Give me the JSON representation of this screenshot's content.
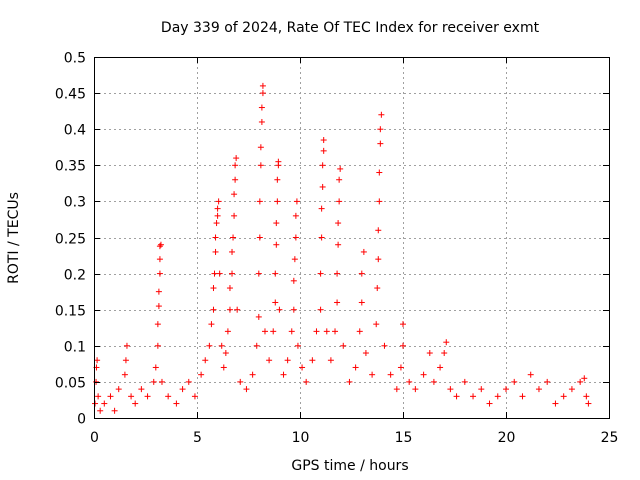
{
  "chart_data": {
    "type": "scatter",
    "title": "Day 339 of 2024, Rate Of TEC Index for receiver exmt",
    "xlabel": "GPS time / hours",
    "ylabel": "ROTI / TECUs",
    "xlim": [
      0,
      25
    ],
    "ylim": [
      0,
      0.5
    ],
    "xticks": [
      0,
      5,
      10,
      15,
      20,
      25
    ],
    "xtick_labels": [
      "0",
      "5",
      "10",
      "15",
      "20",
      "25"
    ],
    "yticks": [
      0,
      0.05,
      0.1,
      0.15,
      0.2,
      0.25,
      0.3,
      0.35,
      0.4,
      0.45,
      0.5
    ],
    "ytick_labels": [
      "0",
      "0.05",
      "0.1",
      "0.15",
      "0.2",
      "0.25",
      "0.3",
      "0.35",
      "0.4",
      "0.45",
      "0.5"
    ],
    "grid": true,
    "marker": "+",
    "color": "#ff0000",
    "series": [
      {
        "name": "ROTI",
        "points": [
          [
            0.05,
            0.02
          ],
          [
            0.1,
            0.05
          ],
          [
            0.12,
            0.07
          ],
          [
            0.15,
            0.08
          ],
          [
            0.2,
            0.03
          ],
          [
            0.3,
            0.01
          ],
          [
            0.5,
            0.02
          ],
          [
            0.8,
            0.03
          ],
          [
            1.0,
            0.01
          ],
          [
            1.2,
            0.04
          ],
          [
            1.5,
            0.06
          ],
          [
            1.55,
            0.08
          ],
          [
            1.6,
            0.1
          ],
          [
            1.8,
            0.03
          ],
          [
            2.0,
            0.02
          ],
          [
            2.3,
            0.04
          ],
          [
            2.6,
            0.03
          ],
          [
            2.9,
            0.05
          ],
          [
            3.0,
            0.07
          ],
          [
            3.1,
            0.1
          ],
          [
            3.1,
            0.13
          ],
          [
            3.15,
            0.155
          ],
          [
            3.15,
            0.175
          ],
          [
            3.2,
            0.2
          ],
          [
            3.2,
            0.22
          ],
          [
            3.2,
            0.238
          ],
          [
            3.25,
            0.24
          ],
          [
            3.3,
            0.05
          ],
          [
            3.6,
            0.03
          ],
          [
            4.0,
            0.02
          ],
          [
            4.3,
            0.04
          ],
          [
            4.6,
            0.05
          ],
          [
            4.9,
            0.03
          ],
          [
            5.2,
            0.06
          ],
          [
            5.4,
            0.08
          ],
          [
            5.6,
            0.1
          ],
          [
            5.7,
            0.13
          ],
          [
            5.8,
            0.15
          ],
          [
            5.8,
            0.18
          ],
          [
            5.85,
            0.2
          ],
          [
            5.9,
            0.23
          ],
          [
            5.9,
            0.25
          ],
          [
            5.95,
            0.27
          ],
          [
            6.0,
            0.28
          ],
          [
            6.0,
            0.29
          ],
          [
            6.05,
            0.3
          ],
          [
            6.1,
            0.2
          ],
          [
            6.2,
            0.1
          ],
          [
            6.3,
            0.07
          ],
          [
            6.4,
            0.09
          ],
          [
            6.5,
            0.12
          ],
          [
            6.6,
            0.15
          ],
          [
            6.6,
            0.18
          ],
          [
            6.7,
            0.2
          ],
          [
            6.7,
            0.23
          ],
          [
            6.75,
            0.25
          ],
          [
            6.8,
            0.28
          ],
          [
            6.8,
            0.31
          ],
          [
            6.85,
            0.33
          ],
          [
            6.85,
            0.35
          ],
          [
            6.9,
            0.36
          ],
          [
            6.95,
            0.15
          ],
          [
            7.1,
            0.05
          ],
          [
            7.4,
            0.04
          ],
          [
            7.7,
            0.06
          ],
          [
            7.9,
            0.1
          ],
          [
            8.0,
            0.14
          ],
          [
            8.0,
            0.2
          ],
          [
            8.05,
            0.25
          ],
          [
            8.05,
            0.3
          ],
          [
            8.1,
            0.35
          ],
          [
            8.1,
            0.375
          ],
          [
            8.15,
            0.41
          ],
          [
            8.15,
            0.43
          ],
          [
            8.2,
            0.45
          ],
          [
            8.2,
            0.46
          ],
          [
            8.3,
            0.12
          ],
          [
            8.5,
            0.08
          ],
          [
            8.7,
            0.12
          ],
          [
            8.8,
            0.16
          ],
          [
            8.8,
            0.2
          ],
          [
            8.85,
            0.24
          ],
          [
            8.85,
            0.27
          ],
          [
            8.9,
            0.3
          ],
          [
            8.9,
            0.33
          ],
          [
            8.95,
            0.35
          ],
          [
            8.95,
            0.355
          ],
          [
            9.0,
            0.15
          ],
          [
            9.2,
            0.06
          ],
          [
            9.4,
            0.08
          ],
          [
            9.6,
            0.12
          ],
          [
            9.7,
            0.15
          ],
          [
            9.7,
            0.19
          ],
          [
            9.75,
            0.22
          ],
          [
            9.8,
            0.25
          ],
          [
            9.8,
            0.28
          ],
          [
            9.85,
            0.3
          ],
          [
            9.9,
            0.1
          ],
          [
            10.1,
            0.07
          ],
          [
            10.3,
            0.05
          ],
          [
            10.6,
            0.08
          ],
          [
            10.8,
            0.12
          ],
          [
            11.0,
            0.15
          ],
          [
            11.0,
            0.2
          ],
          [
            11.05,
            0.25
          ],
          [
            11.05,
            0.29
          ],
          [
            11.1,
            0.32
          ],
          [
            11.1,
            0.35
          ],
          [
            11.15,
            0.37
          ],
          [
            11.15,
            0.385
          ],
          [
            11.3,
            0.12
          ],
          [
            11.5,
            0.08
          ],
          [
            11.7,
            0.12
          ],
          [
            11.8,
            0.16
          ],
          [
            11.8,
            0.2
          ],
          [
            11.85,
            0.24
          ],
          [
            11.85,
            0.27
          ],
          [
            11.9,
            0.3
          ],
          [
            11.9,
            0.33
          ],
          [
            11.95,
            0.345
          ],
          [
            12.1,
            0.1
          ],
          [
            12.4,
            0.05
          ],
          [
            12.7,
            0.07
          ],
          [
            12.9,
            0.12
          ],
          [
            13.0,
            0.16
          ],
          [
            13.0,
            0.2
          ],
          [
            13.1,
            0.23
          ],
          [
            13.2,
            0.09
          ],
          [
            13.5,
            0.06
          ],
          [
            13.7,
            0.13
          ],
          [
            13.75,
            0.18
          ],
          [
            13.8,
            0.22
          ],
          [
            13.8,
            0.26
          ],
          [
            13.85,
            0.3
          ],
          [
            13.85,
            0.34
          ],
          [
            13.9,
            0.38
          ],
          [
            13.9,
            0.4
          ],
          [
            13.95,
            0.42
          ],
          [
            14.1,
            0.1
          ],
          [
            14.4,
            0.06
          ],
          [
            14.7,
            0.04
          ],
          [
            14.9,
            0.07
          ],
          [
            15.0,
            0.1
          ],
          [
            15.0,
            0.13
          ],
          [
            15.3,
            0.05
          ],
          [
            15.6,
            0.04
          ],
          [
            16.0,
            0.06
          ],
          [
            16.3,
            0.09
          ],
          [
            16.5,
            0.05
          ],
          [
            16.8,
            0.07
          ],
          [
            17.0,
            0.09
          ],
          [
            17.1,
            0.105
          ],
          [
            17.3,
            0.04
          ],
          [
            17.6,
            0.03
          ],
          [
            18.0,
            0.05
          ],
          [
            18.4,
            0.03
          ],
          [
            18.8,
            0.04
          ],
          [
            19.2,
            0.02
          ],
          [
            19.6,
            0.03
          ],
          [
            20.0,
            0.04
          ],
          [
            20.4,
            0.05
          ],
          [
            20.8,
            0.03
          ],
          [
            21.2,
            0.06
          ],
          [
            21.6,
            0.04
          ],
          [
            22.0,
            0.05
          ],
          [
            22.4,
            0.02
          ],
          [
            22.8,
            0.03
          ],
          [
            23.2,
            0.04
          ],
          [
            23.6,
            0.05
          ],
          [
            23.8,
            0.055
          ],
          [
            23.9,
            0.03
          ],
          [
            24.0,
            0.02
          ]
        ]
      }
    ]
  }
}
